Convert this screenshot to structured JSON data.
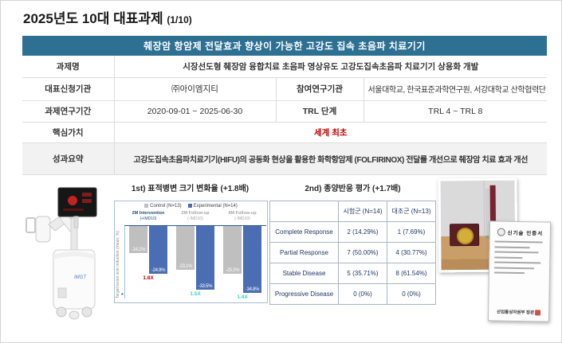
{
  "page": {
    "title": "2025년도 10대 대표과제",
    "page_indicator": "(1/10)"
  },
  "colors": {
    "header_bg": "#2d7092",
    "accent_red": "#c00000",
    "bar_gray": "#bfbfbf",
    "bar_blue": "#4a6db4",
    "ratio_teal": "#35d6bd",
    "table_navy": "#1f3864"
  },
  "project_table": {
    "header": "췌장암 항암제 전달효과 향상이 가능한 고강도 집속 초음파 치료기기",
    "row1": {
      "label": "과제명",
      "value": "시장선도형 췌장암 융합치료 초음파 영상유도 고강도집속초음파 치료기기 상용화 개발"
    },
    "row2": {
      "label": "대표신청기관",
      "value": "㈜아이엠지티",
      "label2": "참여연구기관",
      "value2": "서울대학교, 한국표준과학연구원, 서강대학교 산학협력단"
    },
    "row3": {
      "label": "과제연구기간",
      "value": "2020-09-01 ~ 2025-06-30",
      "label2": "TRL 단계",
      "value2": "TRL 4 ~ TRL 8"
    },
    "row4": {
      "label": "핵심가치",
      "value": "세계 최초"
    },
    "row5": {
      "label": "성과요약",
      "value": "고강도집속초음파치료기기(HIFU)의 공동화 현상을 활용한 화학항암제 (FOLFIRINOX) 전달률 개선으로 췌장암 치료 효과 개선"
    }
  },
  "chart_data": [
    {
      "type": "bar",
      "title": "1st) 표적병변 크기 변화율 (+1.8배)",
      "ylabel": "Target lesion size reduction (mean, %)",
      "footnote_marker": "*",
      "categories": [
        "2M Intervention",
        "2M Follow-up",
        "4M Follow-up"
      ],
      "category_subs": [
        "(+IMD10)",
        "(-IMD10)",
        "(-IMD10)"
      ],
      "category_colors": [
        "#1f4e79",
        "#a6a6a6",
        "#a6a6a6"
      ],
      "series": [
        {
          "name": "Control (N=13)",
          "color": "#bfbfbf",
          "values": [
            -14.1,
            -23.1,
            -25.2
          ]
        },
        {
          "name": "Experimental (N=14)",
          "color": "#4a6db4",
          "values": [
            -24.9,
            -33.5,
            -34.8
          ]
        }
      ],
      "ratio_labels": [
        {
          "text": "1.8X",
          "color": "#c00000"
        },
        {
          "text": "1.5X",
          "color": "#35d6bd"
        },
        {
          "text": "1.4X",
          "color": "#35d6bd"
        }
      ],
      "ylim": [
        -40,
        0
      ],
      "legend_position": "top",
      "grid": false
    },
    {
      "type": "table",
      "title": "2nd) 종양반응 평가 (+1.7배)",
      "columns": [
        "",
        "시험군 (N=14)",
        "대조군 (N=13)"
      ],
      "rows": [
        [
          "Complete Response",
          "2 (14.29%)",
          "1 (7.69%)"
        ],
        [
          "Partial Response",
          "7 (50.00%)",
          "4 (30.77%)"
        ],
        [
          "Stable Disease",
          "5 (35.71%)",
          "8 (61.54%)"
        ],
        [
          "Progressive Disease",
          "0 (0%)",
          "0 (0%)"
        ]
      ]
    }
  ],
  "figures": {
    "device_photo": {
      "logo": "IMGT"
    },
    "certificate": {
      "title": "신기술 인증서",
      "issuer": "산업통상자원부 장관"
    }
  }
}
